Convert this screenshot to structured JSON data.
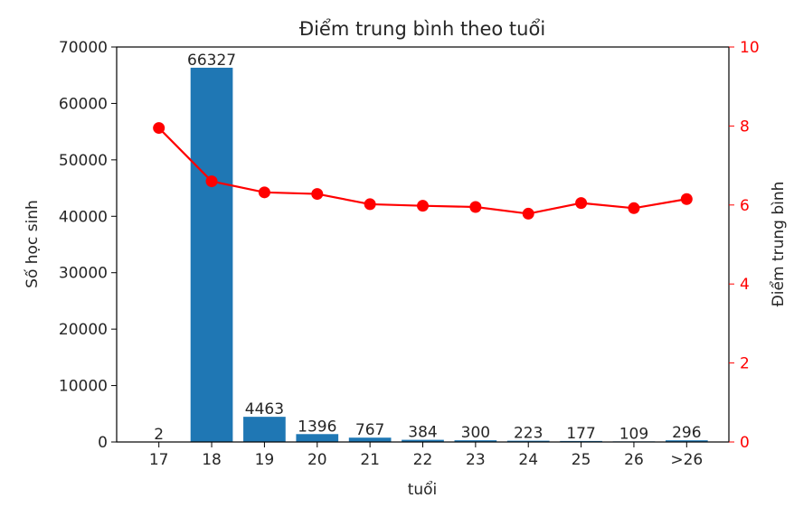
{
  "chart_data": {
    "type": "bar",
    "title": "Điểm trung bình theo tuổi",
    "xlabel": "tuổi",
    "ylabel": "Số học sinh",
    "ylabel_right": "Điểm trung bình",
    "categories": [
      "17",
      "18",
      "19",
      "20",
      "21",
      "22",
      "23",
      "24",
      "25",
      "26",
      ">26"
    ],
    "series": [
      {
        "type": "bar",
        "axis": "left",
        "values": [
          2,
          66327,
          4463,
          1396,
          767,
          384,
          300,
          223,
          177,
          109,
          296
        ],
        "labels": [
          "2",
          "66327",
          "4463",
          "1396",
          "767",
          "384",
          "300",
          "223",
          "177",
          "109",
          "296"
        ],
        "color": "#1f77b4"
      },
      {
        "type": "line",
        "axis": "right",
        "values": [
          7.95,
          6.6,
          6.32,
          6.28,
          6.02,
          5.98,
          5.95,
          5.78,
          6.05,
          5.92,
          6.15
        ],
        "color": "#ff0000",
        "marker": "circle"
      }
    ],
    "ylim": [
      0,
      70000
    ],
    "yticks": [
      "0",
      "10000",
      "20000",
      "30000",
      "40000",
      "50000",
      "60000",
      "70000"
    ],
    "ylim_right": [
      0,
      10
    ],
    "yticks_right": [
      "0",
      "2",
      "4",
      "6",
      "8",
      "10"
    ],
    "right_axis_color": "#ff0000",
    "grid": false,
    "legend": "none"
  }
}
